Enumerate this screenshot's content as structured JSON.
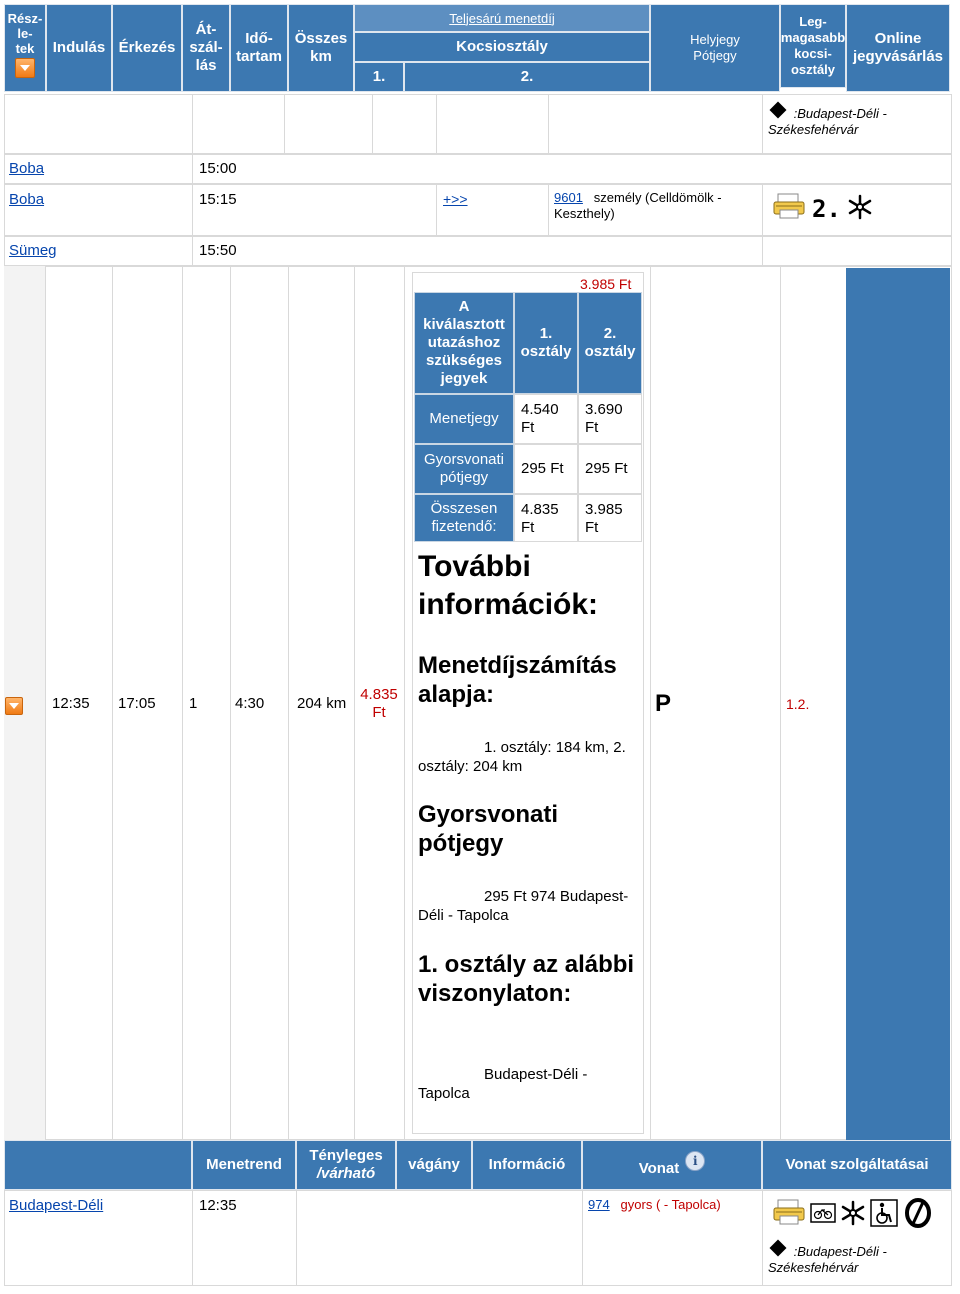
{
  "header": {
    "details_label": "Rész-\nle-\ntek",
    "departure": "Indulás",
    "arrival": "Érkezés",
    "transfers": "Át-\nszál-\nlás",
    "duration": "Idő-\ntartam",
    "total_km": "Összes\nkm",
    "fullprice_label": "Teljesárú menetdíj",
    "class_label": "Kocsiosztály",
    "class1": "1.",
    "class2": "2.",
    "seat_label": "Helyjegy\nPótjegy",
    "highest_class": "Leg-\nmagasabb\nkocsi-\nosztály",
    "online": "Online\njegyvásárlás"
  },
  "route_top": {
    "marker_text": ":Budapest-Déli - Székesfehérvár",
    "stops": [
      {
        "station": "Boba",
        "time": "15:00"
      },
      {
        "station": "Boba",
        "time": "15:15",
        "more": "+>>",
        "train_no": "9601",
        "train_desc": "személy (Celldömölk - Keszthely)",
        "class_badge": "2."
      },
      {
        "station": "Sümeg",
        "time": "15:50"
      }
    ]
  },
  "trip": {
    "dep": "12:35",
    "arr": "17:05",
    "transfers": "1",
    "duration": "4:30",
    "km": "204 km",
    "price": "4.835 Ft",
    "seat": "P",
    "highest_class": "1.2."
  },
  "tickets": {
    "top_price": "3.985 Ft",
    "head": "A kiválasztott utazáshoz szükséges jegyek",
    "col1": "1. osztály",
    "col2": "2. osztály",
    "rows": [
      {
        "label": "Menetjegy",
        "v1": "4.540 Ft",
        "v2": "3.690 Ft"
      },
      {
        "label": "Gyorsvonati pótjegy",
        "v1": "295 Ft",
        "v2": "295 Ft"
      },
      {
        "label": "Összesen fizetendő:",
        "v1": "4.835 Ft",
        "v2": "3.985 Ft"
      }
    ]
  },
  "info": {
    "title": "További információk:",
    "basis_title": "Menetdíjszámítás alapja:",
    "basis_text": "1. osztály: 184 km, 2. osztály: 204 km",
    "supp_title": "Gyorsvonati pótjegy",
    "supp_text": "295 Ft 974 Budapest-Déli - Tapolca",
    "first_title": "1. osztály az alábbi viszonylaton:",
    "first_text": "Budapest-Déli - Tapolca"
  },
  "bottom_header": {
    "schedule": "Menetrend",
    "actual": "Tényleges",
    "expected": "/várható",
    "platform": "vágány",
    "information": "Információ",
    "train": "Vonat",
    "services": "Vonat szolgáltatásai"
  },
  "bottom_row": {
    "station": "Budapest-Déli",
    "time": "12:35",
    "train_no": "974",
    "train_desc": "gyors ( - Tapolca)",
    "marker_text": ":Budapest-Déli - Székesfehérvár"
  },
  "colors": {
    "header_blue": "#3c78b1",
    "link_blue": "#0645ad",
    "red": "#c00000",
    "orange": "#f07a14"
  }
}
